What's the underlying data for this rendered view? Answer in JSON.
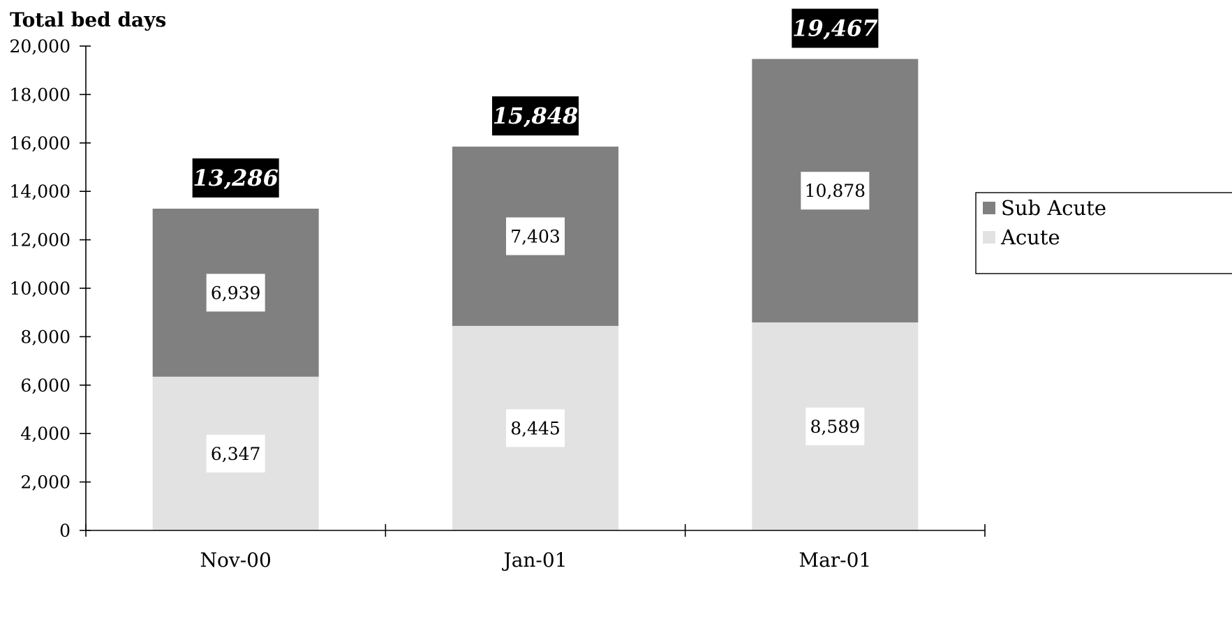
{
  "chart_data": {
    "type": "bar",
    "stacked": true,
    "ylabel": "Total bed days",
    "xlabel": "",
    "ylim": [
      0,
      20000
    ],
    "yticks": [
      0,
      2000,
      4000,
      6000,
      8000,
      10000,
      12000,
      14000,
      16000,
      18000,
      20000
    ],
    "ytick_labels": [
      "0",
      "2,000",
      "4,000",
      "6,000",
      "8,000",
      "10,000",
      "12,000",
      "14,000",
      "16,000",
      "18,000",
      "20,000"
    ],
    "categories": [
      "Nov-00",
      "Jan-01",
      "Mar-01"
    ],
    "series": [
      {
        "name": "Acute",
        "color": "#e2e2e2",
        "values": [
          6347,
          8445,
          8589
        ],
        "labels": [
          "6,347",
          "8,445",
          "8,589"
        ]
      },
      {
        "name": "Sub Acute",
        "color": "#808080",
        "values": [
          6939,
          7403,
          10878
        ],
        "labels": [
          "6,939",
          "7,403",
          "10,878"
        ]
      }
    ],
    "totals": [
      13286,
      15848,
      19467
    ],
    "total_labels": [
      "13,286",
      "15,848",
      "19,467"
    ],
    "legend": {
      "position": "right",
      "entries": [
        {
          "name": "Sub Acute",
          "color": "#808080"
        },
        {
          "name": "Acute",
          "color": "#e2e2e2"
        }
      ]
    },
    "grid": false
  }
}
